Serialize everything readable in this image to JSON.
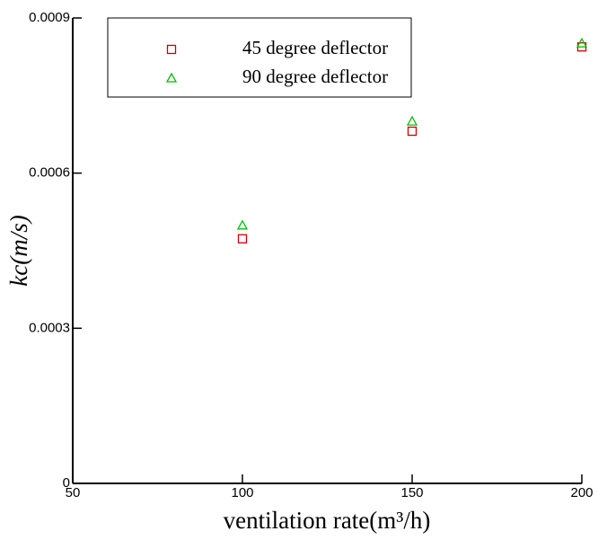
{
  "chart_data": {
    "type": "scatter",
    "x_label": "ventilation rate(m³/h)",
    "y_label": "kc(m/s)",
    "x": [
      100,
      150,
      200
    ],
    "series": [
      {
        "name": "45 degree deflector",
        "color": "#cc0000",
        "marker": "square",
        "values": [
          0.000473,
          0.000681,
          0.000844
        ]
      },
      {
        "name": "90 degree deflector",
        "color": "#00c000",
        "marker": "triangle",
        "values": [
          0.000499,
          0.0007,
          0.000851
        ]
      }
    ],
    "xlim": [
      50,
      200
    ],
    "xticks": [
      50,
      100,
      150,
      200
    ],
    "ylim": [
      0,
      0.0009
    ],
    "yticks": [
      0,
      0.0003,
      0.0006,
      0.0009
    ],
    "grid": false,
    "legend": "top-left"
  }
}
